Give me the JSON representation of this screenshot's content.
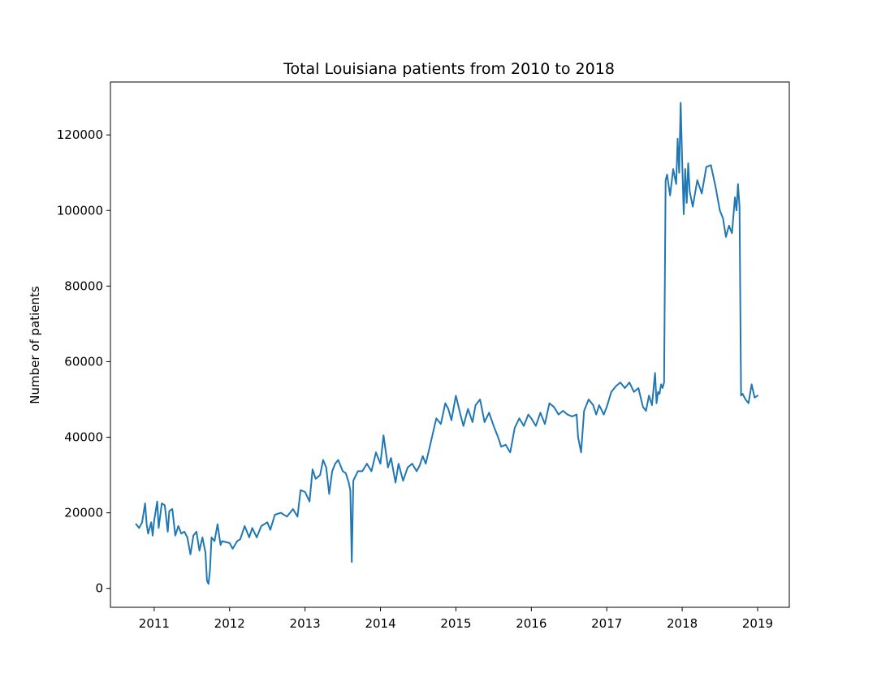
{
  "chart_data": {
    "type": "line",
    "title": "Total Louisiana patients from 2010 to 2018",
    "xlabel": "",
    "ylabel": "Number of patients",
    "xlim": [
      2010.42,
      2019.42
    ],
    "ylim": [
      -5000,
      134000
    ],
    "x_ticks": [
      2011,
      2012,
      2013,
      2014,
      2015,
      2016,
      2017,
      2018,
      2019
    ],
    "x_tick_labels": [
      "2011",
      "2012",
      "2013",
      "2014",
      "2015",
      "2016",
      "2017",
      "2018",
      "2019"
    ],
    "y_ticks": [
      0,
      20000,
      40000,
      60000,
      80000,
      100000,
      120000
    ],
    "y_tick_labels": [
      "0",
      "20000",
      "40000",
      "60000",
      "80000",
      "100000",
      "120000"
    ],
    "grid": false,
    "series": [
      {
        "color": "#1f77b4",
        "x": [
          2010.76,
          2010.8,
          2010.84,
          2010.88,
          2010.9,
          2010.92,
          2010.96,
          2010.98,
          2011.0,
          2011.04,
          2011.06,
          2011.1,
          2011.14,
          2011.18,
          2011.2,
          2011.24,
          2011.28,
          2011.32,
          2011.36,
          2011.4,
          2011.44,
          2011.48,
          2011.52,
          2011.56,
          2011.6,
          2011.64,
          2011.68,
          2011.7,
          2011.72,
          2011.74,
          2011.76,
          2011.8,
          2011.84,
          2011.88,
          2011.9,
          2012.0,
          2012.04,
          2012.1,
          2012.14,
          2012.2,
          2012.26,
          2012.3,
          2012.36,
          2012.42,
          2012.5,
          2012.54,
          2012.6,
          2012.68,
          2012.76,
          2012.84,
          2012.9,
          2012.94,
          2013.0,
          2013.06,
          2013.1,
          2013.14,
          2013.2,
          2013.24,
          2013.28,
          2013.32,
          2013.36,
          2013.4,
          2013.44,
          2013.5,
          2013.54,
          2013.58,
          2013.6,
          2013.62,
          2013.64,
          2013.7,
          2013.76,
          2013.82,
          2013.88,
          2013.94,
          2014.0,
          2014.04,
          2014.1,
          2014.14,
          2014.2,
          2014.24,
          2014.3,
          2014.36,
          2014.42,
          2014.48,
          2014.52,
          2014.56,
          2014.6,
          2014.66,
          2014.74,
          2014.8,
          2014.86,
          2014.9,
          2014.94,
          2015.0,
          2015.06,
          2015.1,
          2015.16,
          2015.22,
          2015.26,
          2015.32,
          2015.38,
          2015.44,
          2015.5,
          2015.56,
          2015.6,
          2015.66,
          2015.72,
          2015.78,
          2015.84,
          2015.9,
          2015.96,
          2016.0,
          2016.06,
          2016.12,
          2016.18,
          2016.24,
          2016.3,
          2016.36,
          2016.42,
          2016.48,
          2016.54,
          2016.6,
          2016.62,
          2016.66,
          2016.7,
          2016.76,
          2016.82,
          2016.86,
          2016.9,
          2016.96,
          2017.0,
          2017.06,
          2017.12,
          2017.18,
          2017.24,
          2017.3,
          2017.36,
          2017.42,
          2017.48,
          2017.52,
          2017.56,
          2017.6,
          2017.64,
          2017.66,
          2017.68,
          2017.7,
          2017.72,
          2017.74,
          2017.76,
          2017.78,
          2017.8,
          2017.84,
          2017.88,
          2017.92,
          2017.94,
          2017.96,
          2017.98,
          2018.0,
          2018.02,
          2018.04,
          2018.06,
          2018.08,
          2018.1,
          2018.14,
          2018.2,
          2018.26,
          2018.32,
          2018.38,
          2018.44,
          2018.5,
          2018.54,
          2018.58,
          2018.62,
          2018.66,
          2018.7,
          2018.72,
          2018.74,
          2018.76,
          2018.78,
          2018.8,
          2018.84,
          2018.88,
          2018.92,
          2018.96,
          2019.0
        ],
        "y": [
          17000,
          16000,
          17500,
          22500,
          17000,
          14500,
          17500,
          14000,
          18000,
          23000,
          16000,
          22500,
          22000,
          15000,
          20500,
          21000,
          14000,
          16500,
          14500,
          15000,
          13500,
          9000,
          14000,
          15000,
          10000,
          13500,
          9500,
          2000,
          1200,
          5000,
          13500,
          12500,
          17000,
          11500,
          12500,
          12000,
          10500,
          12500,
          13000,
          16500,
          13500,
          16000,
          13500,
          16500,
          17500,
          15500,
          19500,
          20000,
          19000,
          21000,
          19000,
          26000,
          25500,
          23000,
          31500,
          29000,
          30000,
          34000,
          32000,
          25000,
          31000,
          33000,
          34000,
          31000,
          30500,
          28000,
          26000,
          7000,
          28500,
          31000,
          31000,
          33000,
          31000,
          36000,
          33000,
          40500,
          32000,
          34500,
          28000,
          33000,
          28500,
          32000,
          33000,
          31000,
          32500,
          35000,
          33000,
          38000,
          45000,
          43500,
          49000,
          47500,
          44500,
          51000,
          46000,
          43000,
          47500,
          44000,
          48500,
          50000,
          44000,
          46500,
          43000,
          40000,
          37500,
          38000,
          36000,
          42500,
          45000,
          43000,
          46000,
          45000,
          43000,
          46500,
          43500,
          49000,
          48000,
          46000,
          47000,
          46000,
          45500,
          46000,
          40000,
          36000,
          47000,
          50000,
          48500,
          46000,
          48500,
          46000,
          48000,
          52000,
          53500,
          54500,
          53000,
          54500,
          52000,
          53000,
          48000,
          47000,
          51000,
          48500,
          57000,
          49000,
          52000,
          51500,
          54000,
          53000,
          54500,
          108000,
          109500,
          104000,
          111000,
          107000,
          119000,
          110000,
          128500,
          113000,
          99000,
          111000,
          102000,
          112500,
          105000,
          101000,
          108000,
          104500,
          111500,
          112000,
          106500,
          100000,
          98000,
          93000,
          96000,
          94000,
          103500,
          100000,
          107000,
          101000,
          51000,
          51500,
          50000,
          49000,
          54000,
          50500,
          51000
        ]
      }
    ]
  }
}
